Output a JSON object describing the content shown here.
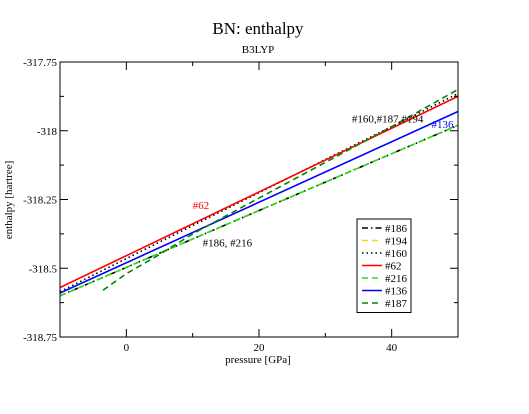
{
  "chart_data": {
    "type": "line",
    "title": "BN: enthalpy",
    "subtitle": "B3LYP",
    "xlabel": "pressure [GPa]",
    "ylabel": "enthalpy [hartree]",
    "xlim": [
      -10,
      50
    ],
    "ylim": [
      -318.75,
      -317.75
    ],
    "x_ticks": [
      0,
      20,
      40
    ],
    "x_tick_labels": [
      "0",
      "20",
      "40"
    ],
    "y_ticks": [
      -318.75,
      -318.5,
      -318.25,
      -318.0,
      -317.75
    ],
    "y_tick_labels": [
      "-318.75",
      "-318.5",
      "-318.25",
      "-318",
      "-317.75"
    ],
    "grid": false,
    "legend_position": "lower-right",
    "series": [
      {
        "name": "#186",
        "color": "#000000",
        "dash": "dash-dot",
        "x": [
          -10,
          50
        ],
        "y": [
          -318.6,
          -317.98
        ]
      },
      {
        "name": "#194",
        "color": "#ffd700",
        "dash": "dash",
        "x": [
          -10,
          50
        ],
        "y": [
          -318.6,
          -317.98
        ]
      },
      {
        "name": "#160",
        "color": "#000000",
        "dash": "dot",
        "x": [
          -10,
          50
        ],
        "y": [
          -318.585,
          -317.865
        ]
      },
      {
        "name": "#62",
        "color": "#ff0000",
        "dash": "solid",
        "x": [
          -10,
          50
        ],
        "y": [
          -318.57,
          -317.875
        ]
      },
      {
        "name": "#216",
        "color": "#22dd22",
        "dash": "dash",
        "x": [
          -10,
          50
        ],
        "y": [
          -318.6,
          -317.98
        ]
      },
      {
        "name": "#136",
        "color": "#0000ff",
        "dash": "solid",
        "x": [
          -10,
          50
        ],
        "y": [
          -318.59,
          -317.93
        ]
      },
      {
        "name": "#187",
        "color": "#008800",
        "dash": "dash",
        "x": [
          -3.5,
          0,
          5,
          10,
          15,
          20,
          30,
          40,
          50
        ],
        "y": [
          -318.58,
          -318.52,
          -318.45,
          -318.375,
          -318.31,
          -318.245,
          -318.115,
          -317.985,
          -317.85
        ]
      }
    ],
    "annotations": [
      {
        "text": "#160,#187,#194",
        "x": 34,
        "y": -317.97,
        "color": "#000000"
      },
      {
        "text": "#136",
        "x": 46,
        "y": -317.99,
        "color": "#0000ff"
      },
      {
        "text": "#62",
        "x": 10,
        "y": -318.285,
        "color": "#ff0000"
      },
      {
        "text": "#186, #216",
        "x": 11.5,
        "y": -318.42,
        "color": "#000000"
      }
    ]
  }
}
